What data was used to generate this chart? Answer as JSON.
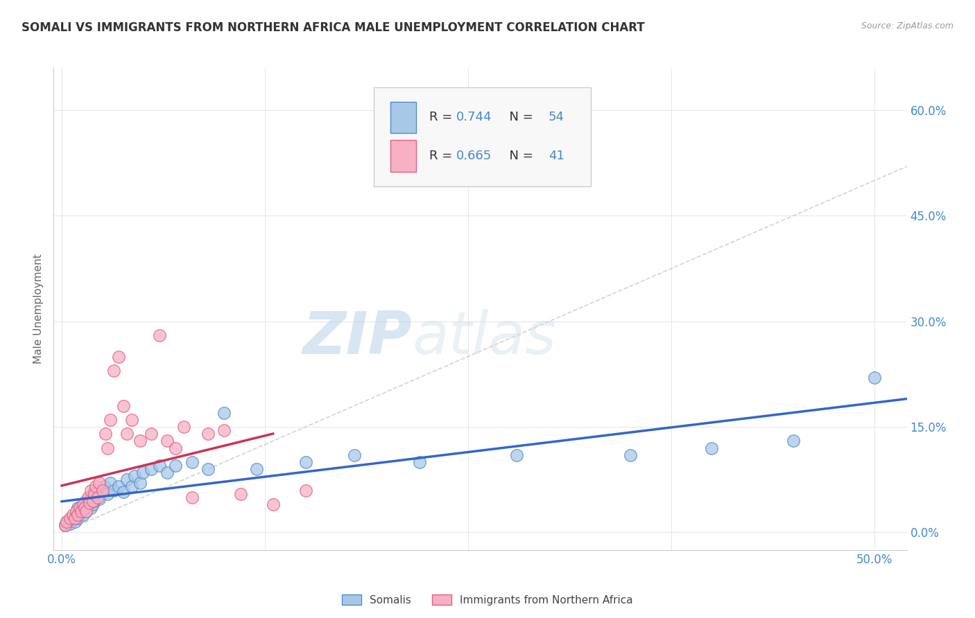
{
  "title": "SOMALI VS IMMIGRANTS FROM NORTHERN AFRICA MALE UNEMPLOYMENT CORRELATION CHART",
  "source": "Source: ZipAtlas.com",
  "ylabel": "Male Unemployment",
  "ytick_vals": [
    0.0,
    0.15,
    0.3,
    0.45,
    0.6
  ],
  "ytick_labels": [
    "0.0%",
    "15.0%",
    "30.0%",
    "45.0%",
    "60.0%"
  ],
  "xtick_vals": [
    0.0,
    0.125,
    0.25,
    0.375,
    0.5
  ],
  "xtick_labels": [
    "0.0%",
    "",
    "",
    "",
    "50.0%"
  ],
  "xlim": [
    -0.005,
    0.52
  ],
  "ylim": [
    -0.025,
    0.66
  ],
  "somali_fill": "#a8c8e8",
  "somali_edge": "#5588cc",
  "nafr_fill": "#f8b0c4",
  "nafr_edge": "#e06080",
  "line_blue": "#3366cc",
  "line_pink": "#cc3355",
  "diag_color": "#c0c0c0",
  "grid_color": "#e8e8e8",
  "bg_color": "#ffffff",
  "title_color": "#333333",
  "tick_color": "#4488cc",
  "ylabel_color": "#666666",
  "legend_r1": "0.744",
  "legend_n1": "54",
  "legend_r2": "0.665",
  "legend_n2": "41",
  "bottom_label1": "Somalis",
  "bottom_label2": "Immigrants from Northern Africa",
  "watermark_zip": "ZIP",
  "watermark_atlas": "atlas",
  "somali_x": [
    0.002,
    0.003,
    0.005,
    0.006,
    0.007,
    0.008,
    0.009,
    0.01,
    0.01,
    0.011,
    0.012,
    0.013,
    0.013,
    0.014,
    0.015,
    0.015,
    0.016,
    0.017,
    0.018,
    0.018,
    0.019,
    0.02,
    0.02,
    0.021,
    0.022,
    0.023,
    0.025,
    0.026,
    0.028,
    0.03,
    0.032,
    0.035,
    0.038,
    0.04,
    0.043,
    0.045,
    0.048,
    0.05,
    0.055,
    0.06,
    0.065,
    0.07,
    0.08,
    0.09,
    0.1,
    0.12,
    0.15,
    0.18,
    0.22,
    0.28,
    0.35,
    0.4,
    0.45,
    0.5
  ],
  "somali_y": [
    0.01,
    0.015,
    0.012,
    0.018,
    0.02,
    0.015,
    0.025,
    0.02,
    0.035,
    0.028,
    0.03,
    0.025,
    0.04,
    0.035,
    0.03,
    0.045,
    0.038,
    0.042,
    0.035,
    0.05,
    0.04,
    0.045,
    0.06,
    0.05,
    0.055,
    0.048,
    0.06,
    0.065,
    0.055,
    0.07,
    0.06,
    0.065,
    0.058,
    0.075,
    0.065,
    0.08,
    0.07,
    0.085,
    0.09,
    0.095,
    0.085,
    0.095,
    0.1,
    0.09,
    0.17,
    0.09,
    0.1,
    0.11,
    0.1,
    0.11,
    0.11,
    0.12,
    0.13,
    0.22
  ],
  "nafr_x": [
    0.002,
    0.003,
    0.005,
    0.007,
    0.008,
    0.009,
    0.01,
    0.011,
    0.012,
    0.013,
    0.014,
    0.015,
    0.016,
    0.017,
    0.018,
    0.019,
    0.02,
    0.021,
    0.022,
    0.023,
    0.025,
    0.027,
    0.028,
    0.03,
    0.032,
    0.035,
    0.038,
    0.04,
    0.043,
    0.048,
    0.055,
    0.06,
    0.065,
    0.07,
    0.075,
    0.08,
    0.09,
    0.1,
    0.11,
    0.13,
    0.15
  ],
  "nafr_y": [
    0.01,
    0.015,
    0.02,
    0.025,
    0.02,
    0.03,
    0.025,
    0.035,
    0.03,
    0.04,
    0.035,
    0.03,
    0.05,
    0.042,
    0.06,
    0.045,
    0.055,
    0.065,
    0.05,
    0.07,
    0.06,
    0.14,
    0.12,
    0.16,
    0.23,
    0.25,
    0.18,
    0.14,
    0.16,
    0.13,
    0.14,
    0.28,
    0.13,
    0.12,
    0.15,
    0.05,
    0.14,
    0.145,
    0.055,
    0.04,
    0.06
  ]
}
